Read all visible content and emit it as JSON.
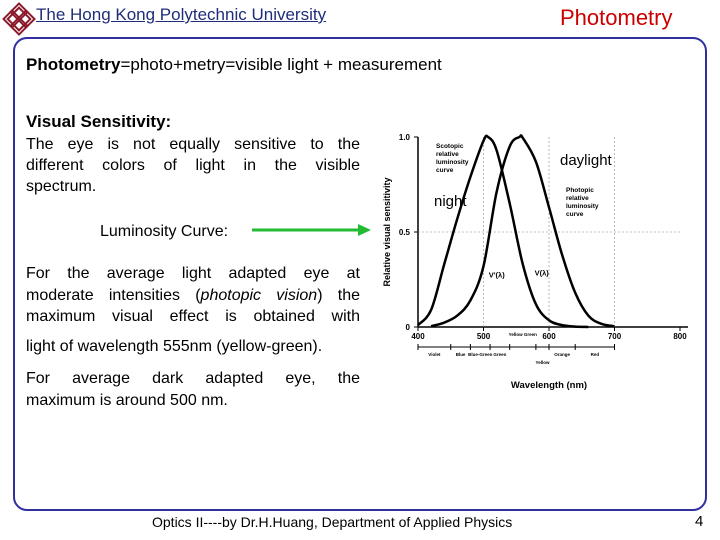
{
  "header": {
    "university": "The Hong Kong Polytechnic University",
    "title": "Photometry"
  },
  "body": {
    "definition_term": "Photometry",
    "definition_rest": "=photo+metry=visible light + measurement",
    "visual_heading": "Visual Sensitivity:",
    "visual_lines": [
      "The eye is not equally sensitive to the",
      "different colors of light in the visible",
      "spectrum."
    ],
    "luminosity_label": "Luminosity Curve:",
    "photopic_line1": "For the average light adapted eye at",
    "photopic_line2_pre": "moderate intensities (",
    "photopic_line2_em": "photopic vision",
    "photopic_line2_post": ") the",
    "photopic_line3": "maximum visual effect is obtained with",
    "photopic_line4": "light of wavelength 555nm (yellow-green).",
    "dark_line1": "For average dark adapted eye, the",
    "dark_line2": "maximum is around 500 nm."
  },
  "chart_data": {
    "type": "line",
    "xlabel": "Wavelength (nm)",
    "ylabel": "Relative visual sensitivity",
    "xlim": [
      400,
      800
    ],
    "ylim": [
      0,
      1.0
    ],
    "x_ticks": [
      "400",
      "500",
      "600",
      "700",
      "800"
    ],
    "y_ticks": [
      "1.0",
      "0.5",
      "0"
    ],
    "color_bands": [
      "Violet",
      "Blue",
      "Blue-Green",
      "Green",
      "Yellow Green",
      "Yellow",
      "Orange",
      "Red"
    ],
    "series": [
      {
        "name": "V'(λ)",
        "label": "Scotopic relative luminosity curve",
        "peak": 507,
        "x": [
          400,
          420,
          440,
          460,
          480,
          500,
          507,
          520,
          540,
          560,
          580,
          600,
          620,
          640,
          660
        ],
        "y": [
          0.01,
          0.09,
          0.33,
          0.57,
          0.79,
          0.98,
          1.0,
          0.93,
          0.65,
          0.33,
          0.12,
          0.035,
          0.01,
          0.002,
          0
        ]
      },
      {
        "name": "V(λ)",
        "label": "Photopic relative luminosity curve",
        "peak": 555,
        "x": [
          420,
          440,
          460,
          480,
          500,
          520,
          540,
          555,
          560,
          580,
          600,
          620,
          640,
          660,
          680,
          700
        ],
        "y": [
          0.004,
          0.023,
          0.06,
          0.14,
          0.32,
          0.71,
          0.95,
          1.0,
          0.995,
          0.87,
          0.63,
          0.38,
          0.18,
          0.06,
          0.017,
          0.004
        ]
      }
    ],
    "annotations": [
      "daylight",
      "night"
    ],
    "colors": {
      "scotopic": "#000000",
      "photopic": "#000000"
    }
  },
  "footer": {
    "credit": "Optics II----by Dr.H.Huang, Department of Applied Physics",
    "page": "4"
  },
  "colors": {
    "title": "#cc0000",
    "university": "#1f2d7a",
    "frame": "#2f2f9f",
    "arrow": "#22bb33"
  }
}
